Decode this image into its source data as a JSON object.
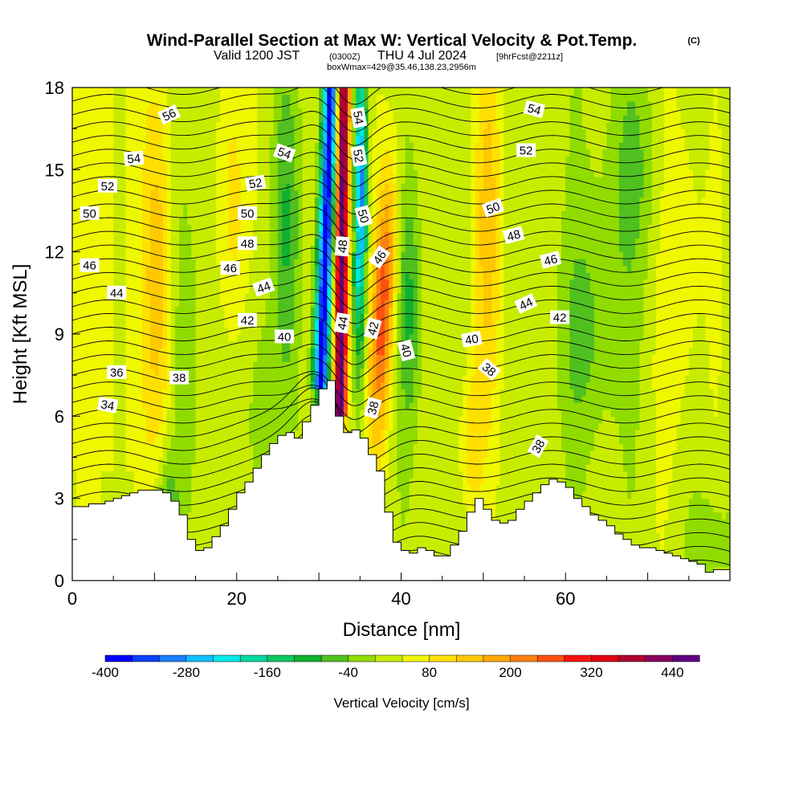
{
  "header": {
    "title": "Wind-Parallel Section at Max W: Vertical Velocity & Pot.Temp.",
    "copyright": "(C)",
    "valid_prefix": "Valid 1200 JST",
    "valid_utc": "(0300Z)",
    "valid_date": "THU 4 Jul 2024",
    "forecast": "[9hrFcst@2211z]",
    "box_info": "boxWmax=429@35.46,138.23,2956m"
  },
  "chart_data": {
    "type": "heatmap",
    "title": "Wind-Parallel Section at Max W: Vertical Velocity & Pot.Temp.",
    "xlabel": "Distance [nm]",
    "ylabel": "Height [Kft MSL]",
    "xlim": [
      0,
      80
    ],
    "ylim": [
      0,
      18
    ],
    "x_ticks": [
      "0",
      "20",
      "40",
      "60"
    ],
    "x_tick_values": [
      0,
      20,
      40,
      60
    ],
    "y_ticks": [
      "0",
      "3",
      "6",
      "9",
      "12",
      "15",
      "18"
    ],
    "y_tick_values": [
      0,
      3,
      6,
      9,
      12,
      15,
      18
    ],
    "colorbar": {
      "label": "Vertical Velocity [cm/s]",
      "tick_labels": [
        "-400",
        "-280",
        "-160",
        "-40",
        "80",
        "200",
        "320",
        "440"
      ],
      "tick_values": [
        -400,
        -280,
        -160,
        -40,
        80,
        200,
        320,
        440
      ],
      "min": -400,
      "max": 480,
      "colors": [
        "#0000ff",
        "#0a40ff",
        "#1a80ff",
        "#10c0ff",
        "#00e8e8",
        "#00d8a0",
        "#10c860",
        "#10b030",
        "#50c020",
        "#90dc00",
        "#c8ec00",
        "#f0f800",
        "#ffe000",
        "#ffc800",
        "#ffa800",
        "#ff8010",
        "#ff5010",
        "#ff1010",
        "#e00010",
        "#b00030",
        "#880060",
        "#600080"
      ]
    },
    "terrain": [
      [
        0,
        2.7
      ],
      [
        1,
        2.7
      ],
      [
        2,
        2.8
      ],
      [
        4,
        2.9
      ],
      [
        5,
        3.0
      ],
      [
        6,
        3.1
      ],
      [
        7,
        3.2
      ],
      [
        8,
        3.3
      ],
      [
        10,
        3.3
      ],
      [
        11,
        3.2
      ],
      [
        12,
        2.9
      ],
      [
        13,
        2.4
      ],
      [
        14,
        1.5
      ],
      [
        15,
        1.1
      ],
      [
        16,
        1.2
      ],
      [
        17,
        1.6
      ],
      [
        18,
        2.0
      ],
      [
        19,
        2.6
      ],
      [
        20,
        3.2
      ],
      [
        21,
        3.6
      ],
      [
        22,
        4.1
      ],
      [
        23,
        4.6
      ],
      [
        24,
        5.0
      ],
      [
        25,
        5.3
      ],
      [
        26,
        5.4
      ],
      [
        27,
        5.2
      ],
      [
        28,
        5.8
      ],
      [
        29,
        6.4
      ],
      [
        30,
        7.0
      ],
      [
        31,
        7.3
      ],
      [
        32,
        6.0
      ],
      [
        33,
        5.4
      ],
      [
        34,
        5.5
      ],
      [
        35,
        5.2
      ],
      [
        36,
        4.6
      ],
      [
        37,
        4.0
      ],
      [
        38,
        2.5
      ],
      [
        39,
        1.4
      ],
      [
        40,
        1.1
      ],
      [
        41,
        1.0
      ],
      [
        42,
        1.2
      ],
      [
        43,
        1.1
      ],
      [
        44,
        0.9
      ],
      [
        45,
        0.9
      ],
      [
        46,
        1.3
      ],
      [
        47,
        1.8
      ],
      [
        48,
        2.5
      ],
      [
        49,
        3.0
      ],
      [
        50,
        2.6
      ],
      [
        51,
        2.2
      ],
      [
        52,
        2.1
      ],
      [
        53,
        2.2
      ],
      [
        54,
        2.6
      ],
      [
        55,
        2.9
      ],
      [
        56,
        3.2
      ],
      [
        57,
        3.5
      ],
      [
        58,
        3.7
      ],
      [
        59,
        3.6
      ],
      [
        60,
        3.4
      ],
      [
        61,
        3.0
      ],
      [
        62,
        2.7
      ],
      [
        63,
        2.4
      ],
      [
        64,
        2.2
      ],
      [
        65,
        2.0
      ],
      [
        66,
        1.7
      ],
      [
        67,
        1.5
      ],
      [
        68,
        1.3
      ],
      [
        69,
        1.2
      ],
      [
        70,
        1.2
      ],
      [
        71,
        1.1
      ],
      [
        72,
        1.0
      ],
      [
        73,
        0.9
      ],
      [
        74,
        0.8
      ],
      [
        75,
        0.7
      ],
      [
        76,
        0.6
      ],
      [
        77,
        0.3
      ],
      [
        78,
        0.4
      ],
      [
        80,
        0.8
      ]
    ],
    "isentrope_labels": [
      {
        "text": "56",
        "x": 11.8,
        "y": 17.0,
        "angle": -25
      },
      {
        "text": "54",
        "x": 7.5,
        "y": 15.4,
        "angle": -5
      },
      {
        "text": "54",
        "x": 25.8,
        "y": 15.6,
        "angle": 20
      },
      {
        "text": "52",
        "x": 4.3,
        "y": 14.4,
        "angle": 0
      },
      {
        "text": "52",
        "x": 22.3,
        "y": 14.5,
        "angle": -10
      },
      {
        "text": "50",
        "x": 2.1,
        "y": 13.4,
        "angle": 0
      },
      {
        "text": "50",
        "x": 21.3,
        "y": 13.4,
        "angle": 0
      },
      {
        "text": "48",
        "x": 21.3,
        "y": 12.3,
        "angle": 0
      },
      {
        "text": "46",
        "x": 2.1,
        "y": 11.5,
        "angle": 0
      },
      {
        "text": "46",
        "x": 19.2,
        "y": 11.4,
        "angle": 0
      },
      {
        "text": "44",
        "x": 5.4,
        "y": 10.5,
        "angle": 0
      },
      {
        "text": "44",
        "x": 23.3,
        "y": 10.7,
        "angle": -20
      },
      {
        "text": "42",
        "x": 21.3,
        "y": 9.5,
        "angle": 0
      },
      {
        "text": "40",
        "x": 25.8,
        "y": 8.9,
        "angle": 0
      },
      {
        "text": "36",
        "x": 5.4,
        "y": 7.6,
        "angle": 0
      },
      {
        "text": "38",
        "x": 13.0,
        "y": 7.4,
        "angle": 0
      },
      {
        "text": "34",
        "x": 4.3,
        "y": 6.4,
        "angle": 10
      },
      {
        "text": "54",
        "x": 34.8,
        "y": 16.9,
        "angle": 80
      },
      {
        "text": "52",
        "x": 34.8,
        "y": 15.5,
        "angle": 80
      },
      {
        "text": "50",
        "x": 35.4,
        "y": 13.3,
        "angle": 75
      },
      {
        "text": "48",
        "x": 32.9,
        "y": 12.2,
        "angle": -85
      },
      {
        "text": "46",
        "x": 37.4,
        "y": 11.8,
        "angle": -55
      },
      {
        "text": "44",
        "x": 32.9,
        "y": 9.4,
        "angle": -80
      },
      {
        "text": "42",
        "x": 36.6,
        "y": 9.2,
        "angle": -75
      },
      {
        "text": "40",
        "x": 40.6,
        "y": 8.4,
        "angle": 75
      },
      {
        "text": "38",
        "x": 36.6,
        "y": 6.3,
        "angle": -75
      },
      {
        "text": "54",
        "x": 56.2,
        "y": 17.2,
        "angle": 15
      },
      {
        "text": "52",
        "x": 55.2,
        "y": 15.7,
        "angle": 0
      },
      {
        "text": "50",
        "x": 51.2,
        "y": 13.6,
        "angle": -20
      },
      {
        "text": "48",
        "x": 53.7,
        "y": 12.6,
        "angle": -15
      },
      {
        "text": "46",
        "x": 58.2,
        "y": 11.7,
        "angle": -15
      },
      {
        "text": "44",
        "x": 55.2,
        "y": 10.1,
        "angle": -25
      },
      {
        "text": "42",
        "x": 59.3,
        "y": 9.6,
        "angle": 0
      },
      {
        "text": "40",
        "x": 48.6,
        "y": 8.8,
        "angle": -10
      },
      {
        "text": "38",
        "x": 50.7,
        "y": 7.7,
        "angle": 40
      },
      {
        "text": "38",
        "x": 56.7,
        "y": 4.9,
        "angle": -60
      }
    ]
  }
}
